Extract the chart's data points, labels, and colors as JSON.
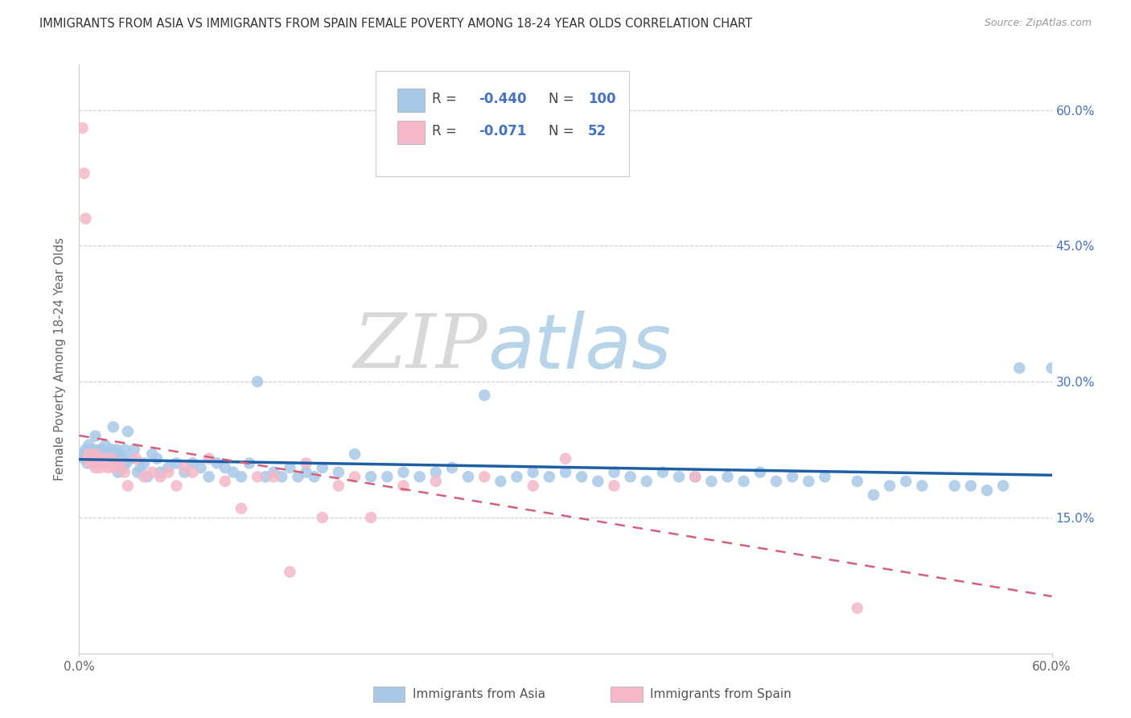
{
  "title": "IMMIGRANTS FROM ASIA VS IMMIGRANTS FROM SPAIN FEMALE POVERTY AMONG 18-24 YEAR OLDS CORRELATION CHART",
  "source": "Source: ZipAtlas.com",
  "ylabel": "Female Poverty Among 18-24 Year Olds",
  "ytick_labels": [
    "15.0%",
    "30.0%",
    "45.0%",
    "60.0%"
  ],
  "ytick_values": [
    0.15,
    0.3,
    0.45,
    0.6
  ],
  "xmin": 0.0,
  "xmax": 0.6,
  "ymin": 0.0,
  "ymax": 0.65,
  "blue_color": "#a8c8e8",
  "blue_line_color": "#1f5fa6",
  "pink_color": "#f4b8c8",
  "pink_line_color": "#d4607a",
  "watermark_zip": "#cccccc",
  "watermark_atlas": "#a8c8e8",
  "asia_x": [
    0.002,
    0.003,
    0.004,
    0.005,
    0.006,
    0.007,
    0.008,
    0.009,
    0.01,
    0.011,
    0.012,
    0.013,
    0.014,
    0.015,
    0.016,
    0.017,
    0.018,
    0.019,
    0.02,
    0.021,
    0.022,
    0.023,
    0.024,
    0.025,
    0.026,
    0.027,
    0.028,
    0.029,
    0.03,
    0.032,
    0.034,
    0.036,
    0.038,
    0.04,
    0.042,
    0.045,
    0.048,
    0.05,
    0.055,
    0.06,
    0.065,
    0.07,
    0.075,
    0.08,
    0.085,
    0.09,
    0.095,
    0.1,
    0.105,
    0.11,
    0.115,
    0.12,
    0.125,
    0.13,
    0.135,
    0.14,
    0.145,
    0.15,
    0.16,
    0.17,
    0.18,
    0.19,
    0.2,
    0.21,
    0.22,
    0.23,
    0.24,
    0.25,
    0.26,
    0.27,
    0.28,
    0.29,
    0.3,
    0.31,
    0.32,
    0.33,
    0.34,
    0.35,
    0.36,
    0.37,
    0.38,
    0.39,
    0.4,
    0.41,
    0.42,
    0.43,
    0.44,
    0.45,
    0.46,
    0.48,
    0.49,
    0.5,
    0.51,
    0.52,
    0.54,
    0.55,
    0.56,
    0.57,
    0.58,
    0.6
  ],
  "asia_y": [
    0.22,
    0.215,
    0.225,
    0.21,
    0.23,
    0.22,
    0.215,
    0.225,
    0.24,
    0.22,
    0.21,
    0.225,
    0.215,
    0.22,
    0.23,
    0.215,
    0.22,
    0.21,
    0.225,
    0.25,
    0.215,
    0.225,
    0.2,
    0.22,
    0.215,
    0.205,
    0.225,
    0.21,
    0.245,
    0.215,
    0.225,
    0.2,
    0.205,
    0.21,
    0.195,
    0.22,
    0.215,
    0.2,
    0.205,
    0.21,
    0.2,
    0.21,
    0.205,
    0.195,
    0.21,
    0.205,
    0.2,
    0.195,
    0.21,
    0.3,
    0.195,
    0.2,
    0.195,
    0.205,
    0.195,
    0.2,
    0.195,
    0.205,
    0.2,
    0.22,
    0.195,
    0.195,
    0.2,
    0.195,
    0.2,
    0.205,
    0.195,
    0.285,
    0.19,
    0.195,
    0.2,
    0.195,
    0.2,
    0.195,
    0.19,
    0.2,
    0.195,
    0.19,
    0.2,
    0.195,
    0.195,
    0.19,
    0.195,
    0.19,
    0.2,
    0.19,
    0.195,
    0.19,
    0.195,
    0.19,
    0.175,
    0.185,
    0.19,
    0.185,
    0.185,
    0.185,
    0.18,
    0.185,
    0.315,
    0.315
  ],
  "spain_x": [
    0.002,
    0.003,
    0.004,
    0.005,
    0.006,
    0.007,
    0.007,
    0.008,
    0.008,
    0.009,
    0.009,
    0.01,
    0.01,
    0.011,
    0.012,
    0.013,
    0.014,
    0.015,
    0.016,
    0.018,
    0.02,
    0.022,
    0.025,
    0.028,
    0.03,
    0.035,
    0.04,
    0.045,
    0.05,
    0.055,
    0.06,
    0.065,
    0.07,
    0.08,
    0.09,
    0.1,
    0.11,
    0.12,
    0.13,
    0.14,
    0.15,
    0.16,
    0.17,
    0.18,
    0.2,
    0.22,
    0.25,
    0.28,
    0.3,
    0.33,
    0.38,
    0.48
  ],
  "spain_y": [
    0.58,
    0.53,
    0.48,
    0.215,
    0.22,
    0.21,
    0.215,
    0.21,
    0.215,
    0.21,
    0.215,
    0.205,
    0.22,
    0.21,
    0.215,
    0.205,
    0.215,
    0.21,
    0.215,
    0.205,
    0.215,
    0.205,
    0.21,
    0.2,
    0.185,
    0.215,
    0.195,
    0.2,
    0.195,
    0.2,
    0.185,
    0.205,
    0.2,
    0.215,
    0.19,
    0.16,
    0.195,
    0.195,
    0.09,
    0.21,
    0.15,
    0.185,
    0.195,
    0.15,
    0.185,
    0.19,
    0.195,
    0.185,
    0.215,
    0.185,
    0.195,
    0.05
  ]
}
